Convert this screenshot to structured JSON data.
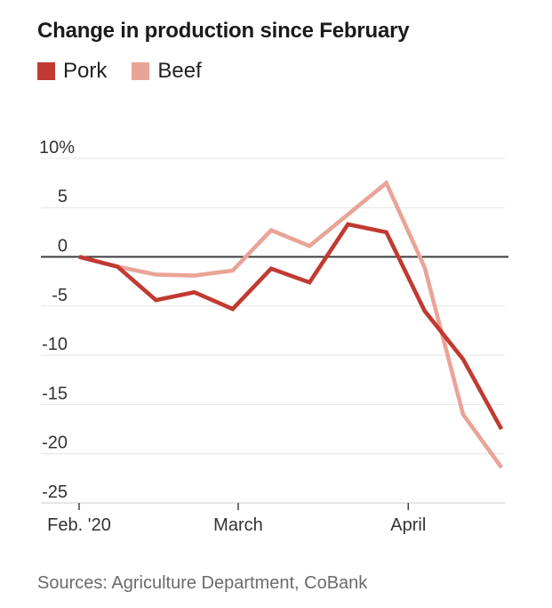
{
  "chart_data": {
    "type": "line",
    "title": "Change in production since February",
    "unit": "%",
    "grid": "horizontal",
    "legend_position": "top-left",
    "zero_line": true,
    "ylim": [
      -25,
      10
    ],
    "yticks": [
      10,
      5,
      0,
      -5,
      -10,
      -15,
      -20,
      -25
    ],
    "ytick_labels": [
      "10%",
      "5",
      "0",
      "-5",
      "-10",
      "-15",
      "-20",
      "-25"
    ],
    "x_days": [
      0,
      7,
      14,
      21,
      28,
      35,
      42,
      49,
      56,
      63,
      70,
      77
    ],
    "xticks": [
      {
        "day": 0,
        "label": "Feb. '20"
      },
      {
        "day": 29,
        "label": "March"
      },
      {
        "day": 60,
        "label": "April"
      }
    ],
    "series": [
      {
        "name": "Pork",
        "color": "#c13a31",
        "values": [
          0,
          -1.0,
          -4.4,
          -3.6,
          -5.3,
          -1.2,
          -2.6,
          3.3,
          2.5,
          -5.5,
          -10.4,
          -17.5
        ]
      },
      {
        "name": "Beef",
        "color": "#eaa497",
        "values": [
          0,
          -1.0,
          -1.8,
          -1.9,
          -1.4,
          2.7,
          1.1,
          4.3,
          7.5,
          -1.1,
          -16.0,
          -21.4
        ]
      }
    ],
    "source": "Sources: Agriculture Department, CoBank",
    "colors": {
      "gridline": "#e4e4e4",
      "baseline": "#cccccc",
      "zero_line": "#3b3b3b",
      "tick": "#444444",
      "axis_text": "#333333"
    }
  }
}
